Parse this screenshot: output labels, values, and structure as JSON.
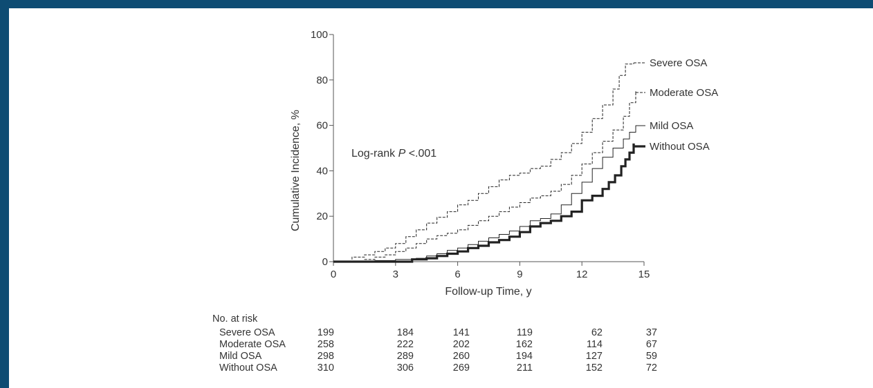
{
  "frame": {
    "border_color": "#0e4c73"
  },
  "chart_data": {
    "type": "line",
    "step": true,
    "title": "",
    "xlabel": "Follow-up Time, y",
    "ylabel": "Cumulative Incidence, %",
    "xlim": [
      0,
      15
    ],
    "ylim": [
      0,
      100
    ],
    "xticks": [
      0,
      3,
      6,
      9,
      12,
      15
    ],
    "yticks": [
      0,
      20,
      40,
      60,
      80,
      100
    ],
    "grid": false,
    "annotation": {
      "prefix": "Log-rank ",
      "italic": "P",
      "suffix": " <.001"
    },
    "series": [
      {
        "name": "Severe OSA",
        "style": "dashed",
        "x": [
          0,
          0.9,
          1.5,
          2.0,
          2.5,
          3.0,
          3.5,
          4.0,
          4.5,
          5.0,
          5.5,
          6.0,
          6.5,
          7.0,
          7.5,
          8.0,
          8.5,
          9.0,
          9.5,
          10.0,
          10.5,
          11.0,
          11.5,
          12.0,
          12.5,
          13.0,
          13.5,
          13.8,
          14.1,
          14.5
        ],
        "y": [
          0,
          2,
          3,
          4.5,
          6,
          8,
          11,
          14,
          17,
          19.5,
          22,
          25,
          27,
          30,
          33,
          36,
          38,
          39,
          41,
          42,
          45,
          48,
          52,
          57,
          63,
          69,
          76,
          82,
          87,
          87
        ]
      },
      {
        "name": "Moderate OSA",
        "style": "dashed",
        "x": [
          0,
          1.5,
          2.0,
          2.5,
          3.0,
          3.5,
          4.0,
          4.5,
          5.0,
          5.5,
          6.0,
          6.5,
          7.0,
          7.5,
          8.0,
          8.5,
          9.0,
          9.5,
          10.0,
          10.5,
          11.0,
          11.5,
          12.0,
          12.5,
          13.0,
          13.5,
          14.0,
          14.3,
          14.6
        ],
        "y": [
          0,
          1,
          2,
          3,
          4.5,
          6,
          8,
          10,
          11.5,
          12.5,
          14,
          16,
          18,
          20,
          22,
          24,
          26,
          28,
          29,
          31,
          34,
          38,
          43,
          48,
          53,
          58,
          64,
          70,
          75
        ]
      },
      {
        "name": "Mild OSA",
        "style": "solid",
        "x": [
          0,
          2.0,
          3.0,
          4.0,
          4.5,
          5.0,
          5.5,
          6.0,
          6.5,
          7.0,
          7.5,
          8.0,
          8.5,
          9.0,
          9.5,
          10.0,
          10.5,
          11.0,
          11.5,
          12.0,
          12.5,
          13.0,
          13.5,
          14.0,
          14.3,
          14.6
        ],
        "y": [
          0,
          0.5,
          1,
          1.5,
          2.5,
          3.5,
          5,
          6,
          7.5,
          9,
          10.5,
          12,
          13.5,
          15.5,
          18,
          19,
          21,
          25,
          30,
          35,
          41,
          46,
          50,
          54,
          57,
          60
        ]
      },
      {
        "name": "Without OSA",
        "style": "bold",
        "x": [
          0,
          3.8,
          4.5,
          5.0,
          5.5,
          6.0,
          6.5,
          7.0,
          7.5,
          8.0,
          8.5,
          9.0,
          9.5,
          10.0,
          10.5,
          11.0,
          11.5,
          12.0,
          12.5,
          13.0,
          13.3,
          13.6,
          13.9,
          14.1,
          14.3,
          14.5
        ],
        "y": [
          0,
          1,
          1.5,
          2.5,
          3.5,
          4.5,
          6,
          7,
          8.5,
          9.5,
          11,
          13,
          15.5,
          17,
          18,
          20,
          22,
          27,
          29,
          32,
          35,
          38,
          42,
          45,
          48,
          52
        ]
      }
    ],
    "risk_table": {
      "title": "No. at risk",
      "times": [
        0,
        3,
        6,
        9,
        12,
        15
      ],
      "rows": [
        {
          "label": "Severe OSA",
          "values": [
            "199",
            "184",
            "141",
            "119",
            "62",
            "37"
          ]
        },
        {
          "label": "Moderate OSA",
          "values": [
            "258",
            "222",
            "202",
            "162",
            "114",
            "67"
          ]
        },
        {
          "label": "Mild OSA",
          "values": [
            "298",
            "289",
            "260",
            "194",
            "127",
            "59"
          ]
        },
        {
          "label": "Without OSA",
          "values": [
            "310",
            "306",
            "269",
            "211",
            "152",
            "72"
          ]
        }
      ]
    }
  }
}
